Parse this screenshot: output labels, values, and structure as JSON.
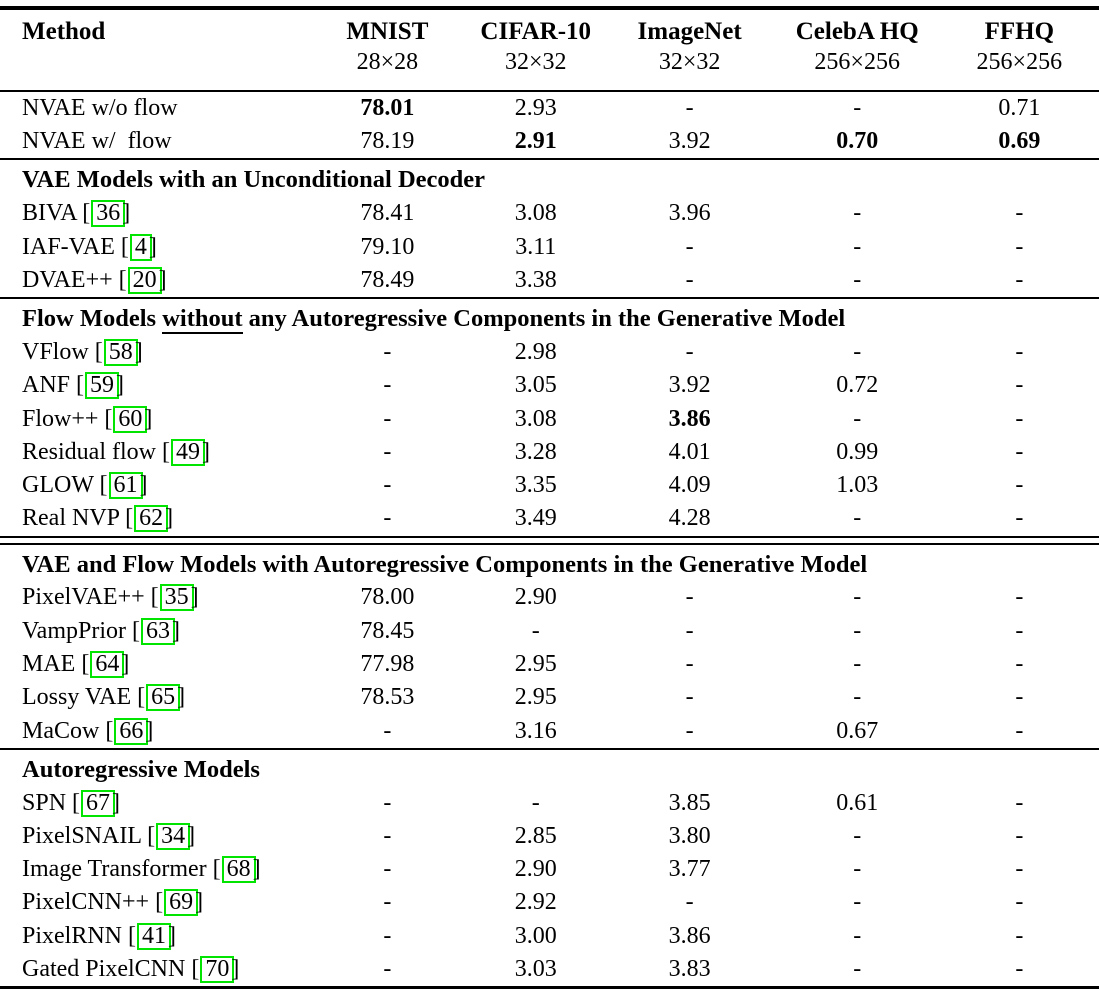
{
  "colors": {
    "citation_box": "#00e400"
  },
  "table": {
    "citation": {
      "open": "[",
      "close": "]"
    },
    "header": {
      "columns": [
        {
          "label": "Method",
          "sub": ""
        },
        {
          "label": "MNIST",
          "sub": "28×28"
        },
        {
          "label": "CIFAR-10",
          "sub": "32×32"
        },
        {
          "label": "ImageNet",
          "sub": "32×32"
        },
        {
          "label": "CelebA HQ",
          "sub": "256×256"
        },
        {
          "label": "FFHQ",
          "sub": "256×256"
        }
      ]
    },
    "groups": [
      {
        "heading": null,
        "rule": "none",
        "rows": [
          {
            "method": "NVAE w/o flow",
            "cite": null,
            "values": [
              {
                "t": "78.01",
                "b": true
              },
              {
                "t": "2.93",
                "b": false
              },
              {
                "t": "-",
                "b": false
              },
              {
                "t": "-",
                "b": false
              },
              {
                "t": "0.71",
                "b": false
              }
            ]
          },
          {
            "method": "NVAE w/  flow",
            "cite": null,
            "values": [
              {
                "t": "78.19",
                "b": false
              },
              {
                "t": "2.91",
                "b": true
              },
              {
                "t": "3.92",
                "b": false
              },
              {
                "t": "0.70",
                "b": true
              },
              {
                "t": "0.69",
                "b": true
              }
            ]
          }
        ]
      },
      {
        "heading": [
          {
            "t": "VAE Models with an Unconditional Decoder",
            "u": false
          }
        ],
        "rule": "single",
        "rows": [
          {
            "method": "BIVA",
            "cite": "36",
            "values": [
              {
                "t": "78.41",
                "b": false
              },
              {
                "t": "3.08",
                "b": false
              },
              {
                "t": "3.96",
                "b": false
              },
              {
                "t": "-",
                "b": false
              },
              {
                "t": "-",
                "b": false
              }
            ]
          },
          {
            "method": "IAF-VAE",
            "cite": "4",
            "values": [
              {
                "t": "79.10",
                "b": false
              },
              {
                "t": "3.11",
                "b": false
              },
              {
                "t": "-",
                "b": false
              },
              {
                "t": "-",
                "b": false
              },
              {
                "t": "-",
                "b": false
              }
            ]
          },
          {
            "method": "DVAE++",
            "cite": "20",
            "values": [
              {
                "t": "78.49",
                "b": false
              },
              {
                "t": "3.38",
                "b": false
              },
              {
                "t": "-",
                "b": false
              },
              {
                "t": "-",
                "b": false
              },
              {
                "t": "-",
                "b": false
              }
            ]
          }
        ]
      },
      {
        "heading": [
          {
            "t": "Flow Models ",
            "u": false
          },
          {
            "t": "without",
            "u": true
          },
          {
            "t": " any Autoregressive Components in the Generative Model",
            "u": false
          }
        ],
        "rule": "single",
        "rows": [
          {
            "method": "VFlow",
            "cite": "58",
            "values": [
              {
                "t": "-",
                "b": false
              },
              {
                "t": "2.98",
                "b": false
              },
              {
                "t": "-",
                "b": false
              },
              {
                "t": "-",
                "b": false
              },
              {
                "t": "-",
                "b": false
              }
            ]
          },
          {
            "method": "ANF",
            "cite": "59",
            "values": [
              {
                "t": "-",
                "b": false
              },
              {
                "t": "3.05",
                "b": false
              },
              {
                "t": "3.92",
                "b": false
              },
              {
                "t": "0.72",
                "b": false
              },
              {
                "t": "-",
                "b": false
              }
            ]
          },
          {
            "method": "Flow++",
            "cite": "60",
            "values": [
              {
                "t": "-",
                "b": false
              },
              {
                "t": "3.08",
                "b": false
              },
              {
                "t": "3.86",
                "b": true
              },
              {
                "t": "-",
                "b": false
              },
              {
                "t": "-",
                "b": false
              }
            ]
          },
          {
            "method": "Residual flow",
            "cite": "49",
            "values": [
              {
                "t": "-",
                "b": false
              },
              {
                "t": "3.28",
                "b": false
              },
              {
                "t": "4.01",
                "b": false
              },
              {
                "t": "0.99",
                "b": false
              },
              {
                "t": "-",
                "b": false
              }
            ]
          },
          {
            "method": "GLOW",
            "cite": "61",
            "values": [
              {
                "t": "-",
                "b": false
              },
              {
                "t": "3.35",
                "b": false
              },
              {
                "t": "4.09",
                "b": false
              },
              {
                "t": "1.03",
                "b": false
              },
              {
                "t": "-",
                "b": false
              }
            ]
          },
          {
            "method": "Real NVP",
            "cite": "62",
            "values": [
              {
                "t": "-",
                "b": false
              },
              {
                "t": "3.49",
                "b": false
              },
              {
                "t": "4.28",
                "b": false
              },
              {
                "t": "-",
                "b": false
              },
              {
                "t": "-",
                "b": false
              }
            ]
          }
        ]
      },
      {
        "heading": [
          {
            "t": "VAE and Flow Models with Autoregressive Components in the Generative Model",
            "u": false
          }
        ],
        "rule": "double",
        "rows": [
          {
            "method": "PixelVAE++",
            "cite": "35",
            "values": [
              {
                "t": "78.00",
                "b": false
              },
              {
                "t": "2.90",
                "b": false
              },
              {
                "t": "-",
                "b": false
              },
              {
                "t": "-",
                "b": false
              },
              {
                "t": "-",
                "b": false
              }
            ]
          },
          {
            "method": "VampPrior",
            "cite": "63",
            "values": [
              {
                "t": "78.45",
                "b": false
              },
              {
                "t": "-",
                "b": false
              },
              {
                "t": "-",
                "b": false
              },
              {
                "t": "-",
                "b": false
              },
              {
                "t": "-",
                "b": false
              }
            ]
          },
          {
            "method": "MAE",
            "cite": "64",
            "values": [
              {
                "t": "77.98",
                "b": false
              },
              {
                "t": "2.95",
                "b": false
              },
              {
                "t": "-",
                "b": false
              },
              {
                "t": "-",
                "b": false
              },
              {
                "t": "-",
                "b": false
              }
            ]
          },
          {
            "method": "Lossy VAE",
            "cite": "65",
            "values": [
              {
                "t": "78.53",
                "b": false
              },
              {
                "t": "2.95",
                "b": false
              },
              {
                "t": "-",
                "b": false
              },
              {
                "t": "-",
                "b": false
              },
              {
                "t": "-",
                "b": false
              }
            ]
          },
          {
            "method": "MaCow",
            "cite": "66",
            "values": [
              {
                "t": "-",
                "b": false
              },
              {
                "t": "3.16",
                "b": false
              },
              {
                "t": "-",
                "b": false
              },
              {
                "t": "0.67",
                "b": false
              },
              {
                "t": "-",
                "b": false
              }
            ]
          }
        ]
      },
      {
        "heading": [
          {
            "t": "Autoregressive Models",
            "u": false
          }
        ],
        "rule": "single",
        "rows": [
          {
            "method": "SPN",
            "cite": "67",
            "values": [
              {
                "t": "-",
                "b": false
              },
              {
                "t": "-",
                "b": false
              },
              {
                "t": "3.85",
                "b": false
              },
              {
                "t": "0.61",
                "b": false
              },
              {
                "t": "-",
                "b": false
              }
            ]
          },
          {
            "method": "PixelSNAIL",
            "cite": "34",
            "values": [
              {
                "t": "-",
                "b": false
              },
              {
                "t": "2.85",
                "b": false
              },
              {
                "t": "3.80",
                "b": false
              },
              {
                "t": "-",
                "b": false
              },
              {
                "t": "-",
                "b": false
              }
            ]
          },
          {
            "method": "Image Transformer",
            "cite": "68",
            "values": [
              {
                "t": "-",
                "b": false
              },
              {
                "t": "2.90",
                "b": false
              },
              {
                "t": "3.77",
                "b": false
              },
              {
                "t": "-",
                "b": false
              },
              {
                "t": "-",
                "b": false
              }
            ]
          },
          {
            "method": "PixelCNN++",
            "cite": "69",
            "values": [
              {
                "t": "-",
                "b": false
              },
              {
                "t": "2.92",
                "b": false
              },
              {
                "t": "-",
                "b": false
              },
              {
                "t": "-",
                "b": false
              },
              {
                "t": "-",
                "b": false
              }
            ]
          },
          {
            "method": "PixelRNN",
            "cite": "41",
            "values": [
              {
                "t": "-",
                "b": false
              },
              {
                "t": "3.00",
                "b": false
              },
              {
                "t": "3.86",
                "b": false
              },
              {
                "t": "-",
                "b": false
              },
              {
                "t": "-",
                "b": false
              }
            ]
          },
          {
            "method": "Gated PixelCNN",
            "cite": "70",
            "values": [
              {
                "t": "-",
                "b": false
              },
              {
                "t": "3.03",
                "b": false
              },
              {
                "t": "3.83",
                "b": false
              },
              {
                "t": "-",
                "b": false
              },
              {
                "t": "-",
                "b": false
              }
            ]
          }
        ]
      }
    ]
  }
}
